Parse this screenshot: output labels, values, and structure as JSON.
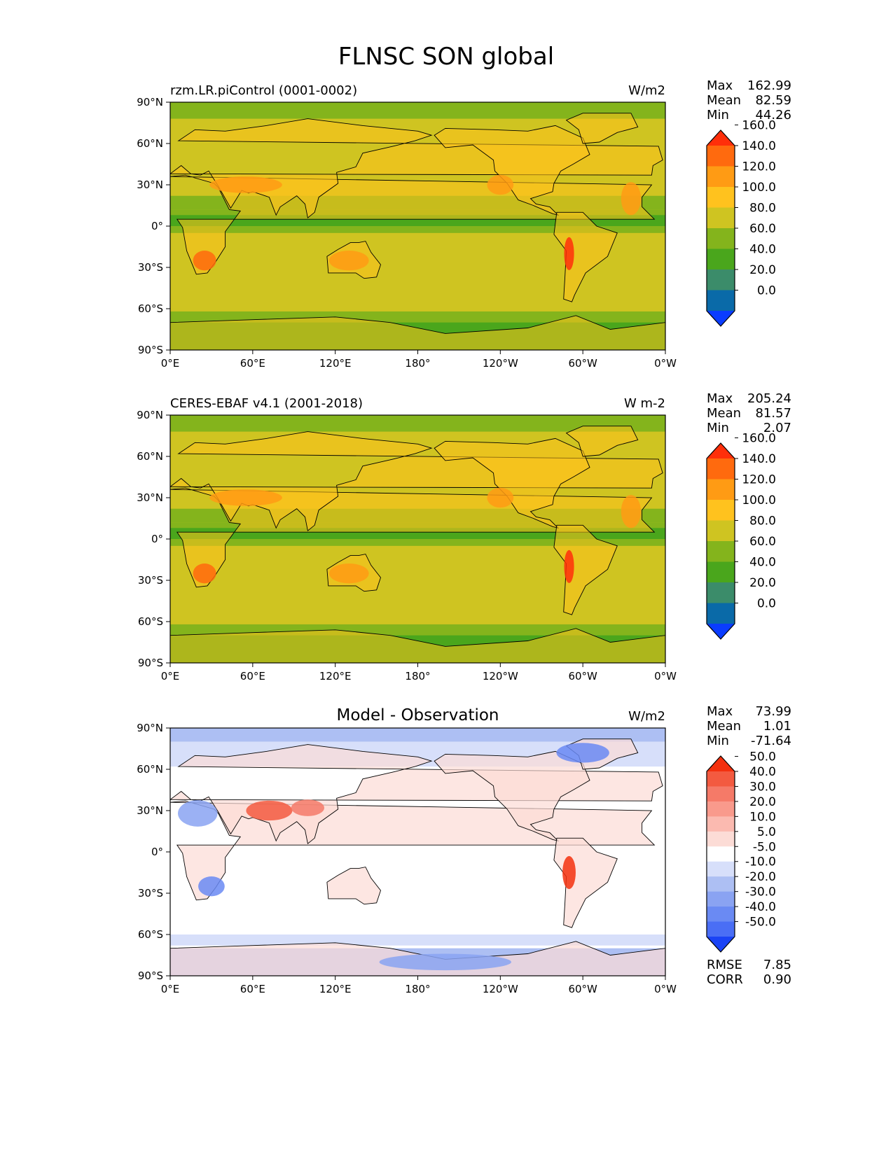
{
  "figure": {
    "title": "FLNSC SON global"
  },
  "colormaps": {
    "abs": {
      "levels": [
        "0.0",
        "20.0",
        "40.0",
        "60.0",
        "80.0",
        "100.0",
        "120.0",
        "140.0",
        "160.0"
      ],
      "colors": [
        "#0a3cff",
        "#0a6aa8",
        "#3b8c6a",
        "#4aa61c",
        "#84b41c",
        "#cfc421",
        "#ffc21e",
        "#ff9b14",
        "#ff6a0e",
        "#ff2f0a"
      ]
    },
    "diff": {
      "levels": [
        "-50.0",
        "-40.0",
        "-30.0",
        "-20.0",
        "-10.0",
        "-5.0",
        "5.0",
        "10.0",
        "20.0",
        "30.0",
        "40.0",
        "50.0"
      ],
      "colors": [
        "#1a43f5",
        "#4a6ef5",
        "#6a8af3",
        "#8aa3f2",
        "#adbff3",
        "#d7dffa",
        "#ffffff",
        "#fcdcd6",
        "#fbbab0",
        "#f99a8c",
        "#f57a68",
        "#f35a40",
        "#f3300e"
      ]
    }
  },
  "chart_data": [
    {
      "type": "heatmap",
      "projection": "cylindrical",
      "title": "",
      "left_title": "rzm.LR.piControl (0001-0002)",
      "units": "W/m2",
      "colormap": "abs",
      "x_ticks": [
        "0°E",
        "60°E",
        "120°E",
        "180°",
        "120°W",
        "60°W",
        "0°W"
      ],
      "y_ticks": [
        "90°N",
        "60°N",
        "30°N",
        "0°",
        "30°S",
        "60°S",
        "90°S"
      ],
      "stats": [
        {
          "label": "Max",
          "value": "162.99"
        },
        {
          "label": "Mean",
          "value": "82.59"
        },
        {
          "label": "Min",
          "value": "44.26"
        }
      ]
    },
    {
      "type": "heatmap",
      "projection": "cylindrical",
      "title": "",
      "left_title": "CERES-EBAF v4.1 (2001-2018)",
      "units": "W m-2",
      "colormap": "abs",
      "x_ticks": [
        "0°E",
        "60°E",
        "120°E",
        "180°",
        "120°W",
        "60°W",
        "0°W"
      ],
      "y_ticks": [
        "90°N",
        "60°N",
        "30°N",
        "0°",
        "30°S",
        "60°S",
        "90°S"
      ],
      "stats": [
        {
          "label": "Max",
          "value": "205.24"
        },
        {
          "label": "Mean",
          "value": "81.57"
        },
        {
          "label": "Min",
          "value": "2.07"
        }
      ]
    },
    {
      "type": "heatmap",
      "projection": "cylindrical",
      "title": "Model - Observation",
      "left_title": "",
      "units": "W/m2",
      "colormap": "diff",
      "x_ticks": [
        "0°E",
        "60°E",
        "120°E",
        "180°",
        "120°W",
        "60°W",
        "0°W"
      ],
      "y_ticks": [
        "90°N",
        "60°N",
        "30°N",
        "0°",
        "30°S",
        "60°S",
        "90°S"
      ],
      "stats": [
        {
          "label": "Max",
          "value": "73.99"
        },
        {
          "label": "Mean",
          "value": "1.01"
        },
        {
          "label": "Min",
          "value": "-71.64"
        }
      ],
      "metrics": [
        {
          "label": "RMSE",
          "value": "7.85"
        },
        {
          "label": "CORR",
          "value": "0.90"
        }
      ]
    }
  ]
}
